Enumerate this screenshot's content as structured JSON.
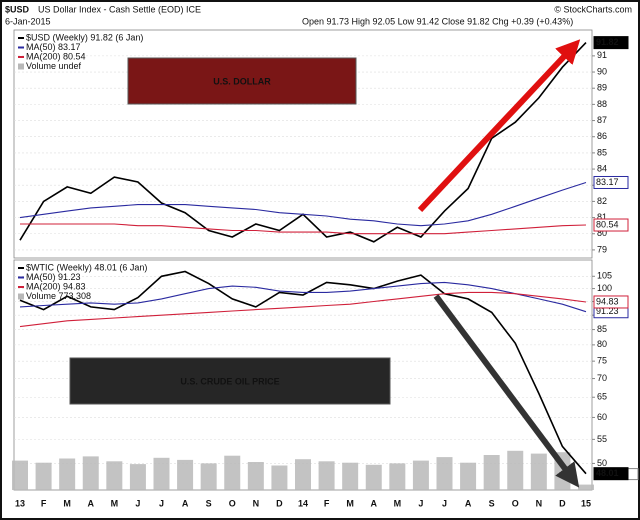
{
  "header": {
    "symbol": "$USD",
    "description": "US Dollar Index - Cash Settle (EOD) ICE",
    "date": "6-Jan-2015",
    "quote": "Open 91.73 High 92.05 Low 91.42 Close 91.82 Chg +0.39 (+0.43%)",
    "source": "© StockCharts.com"
  },
  "chart_data": [
    {
      "type": "line",
      "annotation": "U.S. DOLLAR",
      "annotation_color": "#7a1616",
      "ylim": [
        78.5,
        92.6
      ],
      "yticks": [
        79,
        80,
        81,
        82,
        83,
        84,
        85,
        86,
        87,
        88,
        89,
        90,
        91
      ],
      "grid": true,
      "log_scale": false,
      "series": [
        {
          "name": "$USD (Weekly) 91.82 (6 Jan)",
          "color": "#000000",
          "values": [
            79.6,
            82.0,
            82.9,
            82.5,
            83.5,
            83.2,
            81.9,
            81.3,
            80.2,
            79.8,
            80.6,
            80.2,
            81.2,
            79.8,
            80.1,
            79.5,
            80.4,
            79.8,
            81.4,
            82.8,
            85.9,
            86.9,
            88.4,
            90.3,
            91.82
          ],
          "value_labels": [
            null,
            null,
            null,
            null,
            null,
            null,
            null,
            null,
            null,
            null,
            null,
            null,
            null,
            null,
            null,
            null,
            null,
            null,
            null,
            null,
            null,
            null,
            null,
            null,
            "91.82"
          ]
        },
        {
          "name": "MA(50) 83.17",
          "color": "#2a2aa0",
          "values": [
            81.0,
            81.2,
            81.4,
            81.6,
            81.7,
            81.8,
            81.8,
            81.8,
            81.7,
            81.6,
            81.5,
            81.3,
            81.2,
            81.1,
            80.9,
            80.8,
            80.6,
            80.5,
            80.6,
            80.8,
            81.2,
            81.7,
            82.2,
            82.7,
            83.17
          ],
          "value_labels": [
            null,
            null,
            null,
            null,
            null,
            null,
            null,
            null,
            null,
            null,
            null,
            null,
            null,
            null,
            null,
            null,
            null,
            null,
            null,
            null,
            null,
            null,
            null,
            null,
            "83.17"
          ]
        },
        {
          "name": "MA(200) 80.54",
          "color": "#d0203a",
          "values": [
            80.6,
            80.6,
            80.6,
            80.6,
            80.6,
            80.5,
            80.5,
            80.4,
            80.3,
            80.2,
            80.2,
            80.1,
            80.1,
            80.1,
            80.0,
            80.0,
            80.0,
            80.0,
            80.0,
            80.1,
            80.2,
            80.3,
            80.4,
            80.5,
            80.54
          ],
          "value_labels": [
            null,
            null,
            null,
            null,
            null,
            null,
            null,
            null,
            null,
            null,
            null,
            null,
            null,
            null,
            null,
            null,
            null,
            null,
            null,
            null,
            null,
            null,
            null,
            null,
            "80.54"
          ]
        }
      ],
      "volume": {
        "name": "Volume undef"
      }
    },
    {
      "type": "line",
      "annotation": "U.S. CRUDE OIL PRICE",
      "annotation_color": "#262626",
      "categories": [
        "13",
        "F",
        "M",
        "A",
        "M",
        "J",
        "J",
        "A",
        "S",
        "O",
        "N",
        "D",
        "14",
        "F",
        "M",
        "A",
        "M",
        "J",
        "J",
        "A",
        "S",
        "O",
        "N",
        "D",
        "15"
      ],
      "ylim": [
        45,
        112
      ],
      "yticks": [
        50,
        55,
        60,
        65,
        70,
        75,
        80,
        85,
        90,
        95,
        100,
        105
      ],
      "grid": true,
      "log_scale": true,
      "series": [
        {
          "name": "$WTIC (Weekly) 48.01 (6 Jan)",
          "color": "#000000",
          "values": [
            95.5,
            92,
            97,
            93,
            92,
            96.5,
            105,
            107,
            102,
            96,
            93,
            98.5,
            97.5,
            102.5,
            101.5,
            100,
            103,
            105.5,
            98,
            96,
            91,
            80.5,
            66,
            53.5,
            48.01
          ],
          "value_labels": [
            null,
            null,
            null,
            null,
            null,
            null,
            null,
            null,
            null,
            null,
            null,
            null,
            null,
            null,
            null,
            null,
            null,
            null,
            null,
            null,
            null,
            null,
            null,
            null,
            "48.01"
          ]
        },
        {
          "name": "MA(50) 91.23",
          "color": "#2a2aa0",
          "values": [
            93,
            93.5,
            94,
            94.5,
            94,
            94.5,
            96,
            98,
            100,
            101,
            100.5,
            99,
            98.5,
            98.5,
            99,
            100,
            101,
            102,
            102.5,
            101.5,
            100,
            98,
            96,
            94,
            91.23
          ],
          "value_labels": [
            null,
            null,
            null,
            null,
            null,
            null,
            null,
            null,
            null,
            null,
            null,
            null,
            null,
            null,
            null,
            null,
            null,
            null,
            null,
            null,
            null,
            null,
            null,
            null,
            "91.23"
          ]
        },
        {
          "name": "MA(200) 94.83",
          "color": "#d0203a",
          "values": [
            86,
            87,
            88,
            88.5,
            89,
            89.5,
            90,
            90.5,
            91,
            91.5,
            92,
            92.5,
            93,
            93.5,
            94,
            95,
            96,
            97,
            98,
            98.5,
            98.5,
            98,
            97,
            96,
            94.83
          ],
          "value_labels": [
            null,
            null,
            null,
            null,
            null,
            null,
            null,
            null,
            null,
            null,
            null,
            null,
            null,
            null,
            null,
            null,
            null,
            null,
            null,
            null,
            null,
            null,
            null,
            null,
            "94.83"
          ]
        }
      ],
      "volume": {
        "name": "Volume 773,308",
        "color": "#b8b8b8",
        "lim": [
          0,
          16000000
        ],
        "values": [
          4200000,
          3900000,
          4500000,
          4800000,
          4100000,
          3700000,
          4600000,
          4300000,
          3800000,
          4900000,
          4000000,
          3500000,
          4400000,
          4100000,
          3900000,
          3600000,
          3800000,
          4200000,
          4700000,
          3900000,
          5000000,
          5600000,
          5200000,
          5400000,
          773308
        ],
        "value_labels": [
          null,
          null,
          null,
          null,
          null,
          null,
          null,
          null,
          null,
          null,
          null,
          null,
          null,
          null,
          null,
          null,
          null,
          null,
          null,
          null,
          null,
          null,
          null,
          null,
          "773308"
        ]
      }
    }
  ]
}
